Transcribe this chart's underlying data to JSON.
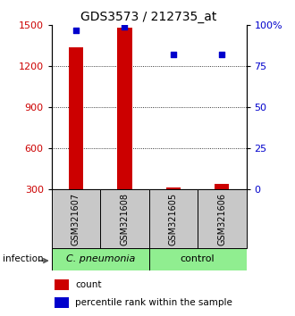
{
  "title": "GDS3573 / 212735_at",
  "samples": [
    "GSM321607",
    "GSM321608",
    "GSM321605",
    "GSM321606"
  ],
  "counts": [
    1340,
    1480,
    315,
    340
  ],
  "percentile_ranks": [
    97,
    99,
    82,
    82
  ],
  "ylim_left": [
    300,
    1500
  ],
  "ylim_right": [
    0,
    100
  ],
  "yticks_left": [
    300,
    600,
    900,
    1200,
    1500
  ],
  "yticks_right": [
    0,
    25,
    50,
    75,
    100
  ],
  "ytick_labels_right": [
    "0",
    "25",
    "50",
    "75",
    "100%"
  ],
  "grid_values": [
    600,
    900,
    1200
  ],
  "bar_color": "#CC0000",
  "dot_color": "#0000CC",
  "sample_box_color": "#C8C8C8",
  "group_box_color_left": "#90EE90",
  "group_box_color_right": "#90EE90",
  "infection_label": "infection",
  "legend_count": "count",
  "legend_percentile": "percentile rank within the sample",
  "title_fontsize": 10,
  "tick_fontsize": 8,
  "sample_fontsize": 7,
  "group_fontsize": 8,
  "legend_fontsize": 7.5
}
